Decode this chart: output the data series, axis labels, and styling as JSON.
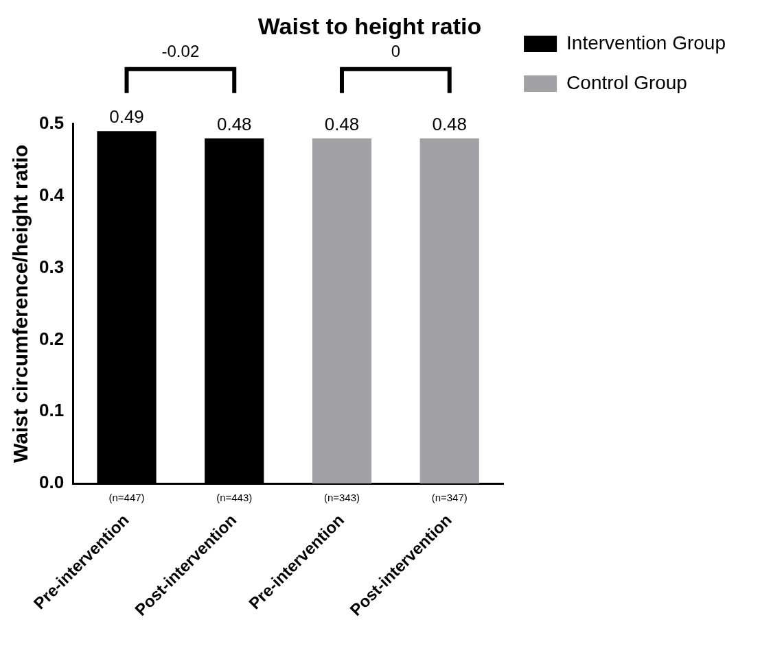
{
  "chart_data": {
    "type": "bar",
    "title": "Waist to height ratio",
    "ylabel": "Waist circumference/height ratio",
    "categories": [
      "Pre-intervention",
      "Post-intervention",
      "Pre-intervention",
      "Post-intervention"
    ],
    "series": [
      {
        "name": "Intervention Group",
        "color": "#000000",
        "values": [
          0.49,
          0.48,
          null,
          null
        ]
      },
      {
        "name": "Control Group",
        "color": "#a2a1a6",
        "values": [
          null,
          null,
          0.48,
          0.48
        ]
      }
    ],
    "ylim": [
      0,
      0.5
    ],
    "yticks": [
      {
        "value": 0,
        "label": "0.0"
      },
      0.1,
      0.2,
      0.3,
      0.4,
      0.5
    ],
    "data_labels": true,
    "grid": false,
    "legend": "right",
    "annotations": [
      "-0.02",
      "0",
      "(n=447)",
      "(n=443)",
      "(n=343)",
      "(n=347)"
    ]
  }
}
